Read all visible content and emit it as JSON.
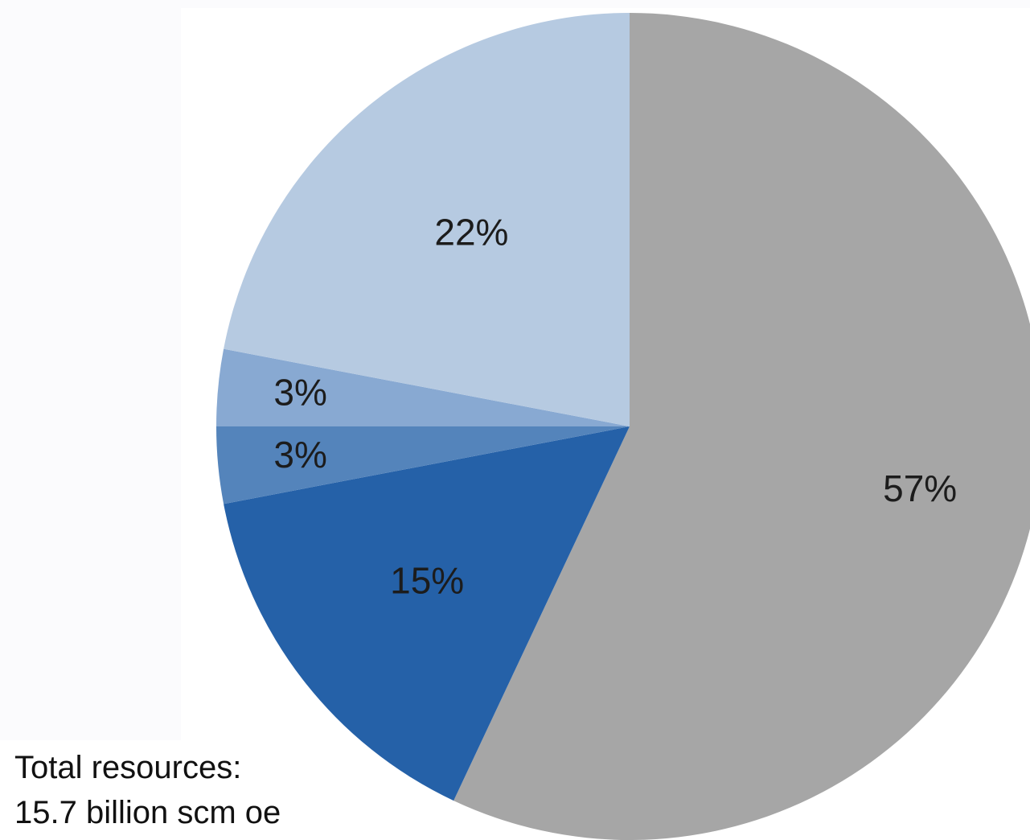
{
  "chart_data": {
    "type": "pie",
    "start_angle_deg": 0,
    "direction": "clockwise",
    "slices": [
      {
        "label": "57%",
        "value": 57,
        "color": "#a6a6a6"
      },
      {
        "label": "15%",
        "value": 15,
        "color": "#2561a8"
      },
      {
        "label": "3%",
        "value": 3,
        "color": "#5484bb"
      },
      {
        "label": "3%",
        "value": 3,
        "color": "#88a9d2"
      },
      {
        "label": "22%",
        "value": 22,
        "color": "#b6cae1"
      }
    ]
  },
  "total": {
    "line1": "Total resources:",
    "line2": "15.7 billion scm oe"
  }
}
